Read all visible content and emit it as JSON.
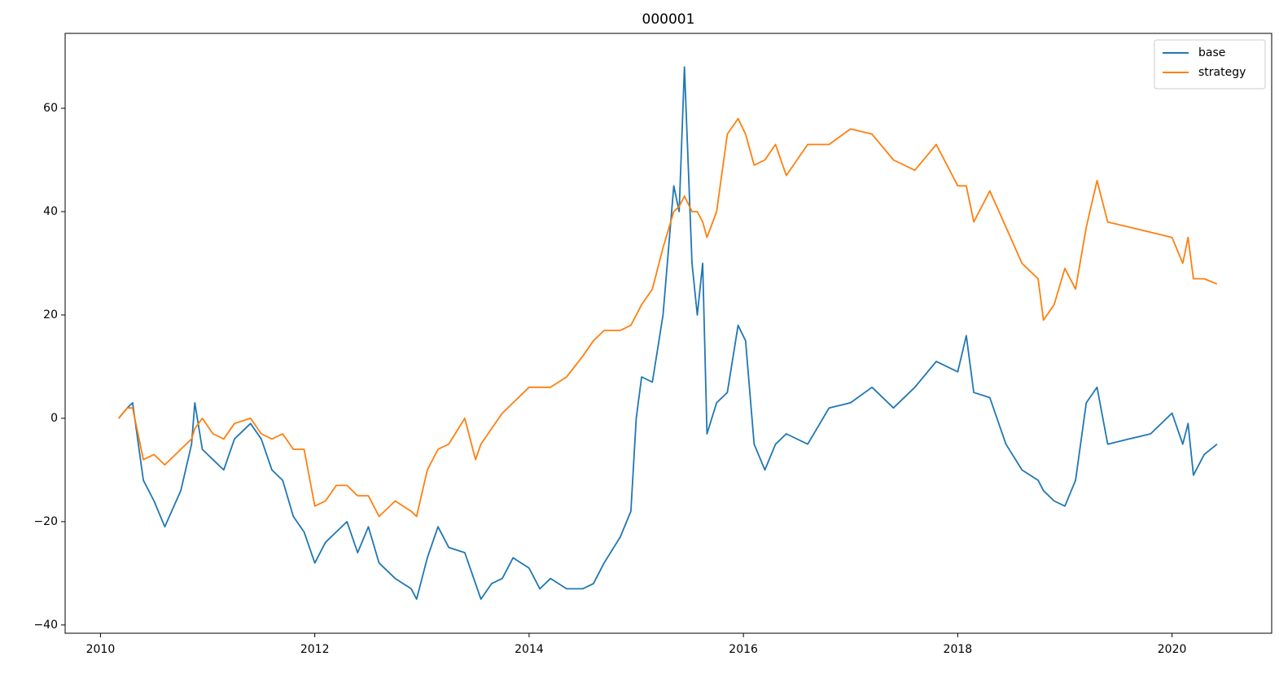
{
  "chart_data": {
    "type": "line",
    "title": "000001",
    "x": [
      2010.17,
      2010.25,
      2010.3,
      2010.4,
      2010.5,
      2010.6,
      2010.75,
      2010.85,
      2010.88,
      2010.95,
      2011.05,
      2011.15,
      2011.25,
      2011.4,
      2011.5,
      2011.6,
      2011.7,
      2011.8,
      2011.9,
      2012.0,
      2012.1,
      2012.2,
      2012.3,
      2012.4,
      2012.5,
      2012.6,
      2012.75,
      2012.9,
      2012.95,
      2013.05,
      2013.15,
      2013.25,
      2013.4,
      2013.5,
      2013.55,
      2013.65,
      2013.75,
      2013.85,
      2014.0,
      2014.1,
      2014.2,
      2014.35,
      2014.5,
      2014.6,
      2014.7,
      2014.85,
      2014.95,
      2015.0,
      2015.05,
      2015.15,
      2015.25,
      2015.35,
      2015.4,
      2015.45,
      2015.52,
      2015.57,
      2015.62,
      2015.66,
      2015.75,
      2015.85,
      2015.95,
      2016.02,
      2016.1,
      2016.2,
      2016.3,
      2016.4,
      2016.6,
      2016.8,
      2017.0,
      2017.2,
      2017.4,
      2017.6,
      2017.8,
      2018.0,
      2018.08,
      2018.15,
      2018.3,
      2018.45,
      2018.6,
      2018.75,
      2018.8,
      2018.9,
      2019.0,
      2019.1,
      2019.2,
      2019.3,
      2019.4,
      2019.6,
      2019.8,
      2020.0,
      2020.1,
      2020.15,
      2020.2,
      2020.3,
      2020.42
    ],
    "series": [
      {
        "name": "base",
        "color": "#1f77b4",
        "values": [
          0,
          2,
          3,
          -12,
          -16,
          -21,
          -14,
          -5,
          3,
          -6,
          -8,
          -10,
          -4,
          -1,
          -4,
          -10,
          -12,
          -19,
          -22,
          -28,
          -24,
          -22,
          -20,
          -26,
          -21,
          -28,
          -31,
          -33,
          -35,
          -27,
          -21,
          -25,
          -26,
          -32,
          -35,
          -32,
          -31,
          -27,
          -29,
          -33,
          -31,
          -33,
          -33,
          -32,
          -28,
          -23,
          -18,
          0,
          8,
          7,
          20,
          45,
          40,
          68,
          30,
          20,
          30,
          -3,
          3,
          5,
          18,
          15,
          -5,
          -10,
          -5,
          -3,
          -5,
          2,
          3,
          6,
          2,
          6,
          11,
          9,
          16,
          5,
          4,
          -5,
          -10,
          -12,
          -14,
          -16,
          -17,
          -12,
          3,
          6,
          -5,
          -4,
          -3,
          1,
          -5,
          -1,
          -11,
          -7,
          -5
        ]
      },
      {
        "name": "strategy",
        "color": "#ff7f0e",
        "values": [
          0,
          2,
          2,
          -8,
          -7,
          -9,
          -6,
          -4,
          -2,
          0,
          -3,
          -4,
          -1,
          0,
          -3,
          -4,
          -3,
          -6,
          -6,
          -17,
          -16,
          -13,
          -13,
          -15,
          -15,
          -19,
          -16,
          -18,
          -19,
          -10,
          -6,
          -5,
          0,
          -8,
          -5,
          -2,
          1,
          3,
          6,
          6,
          6,
          8,
          12,
          15,
          17,
          17,
          18,
          20,
          22,
          25,
          33,
          40,
          41,
          43,
          40,
          40,
          38,
          35,
          40,
          55,
          58,
          55,
          49,
          50,
          53,
          47,
          53,
          53,
          56,
          55,
          50,
          48,
          53,
          45,
          45,
          38,
          44,
          37,
          30,
          27,
          19,
          22,
          29,
          25,
          37,
          46,
          38,
          37,
          36,
          35,
          30,
          35,
          27,
          27,
          26
        ]
      }
    ],
    "xlim": [
      2009.67,
      2020.93
    ],
    "xticks": [
      2010,
      2012,
      2014,
      2016,
      2018,
      2020
    ],
    "ylim": [
      -41.6,
      74.5
    ],
    "yticks": [
      {
        "value": -40,
        "label": "−40"
      },
      {
        "value": -20,
        "label": "−20"
      },
      0,
      20,
      40,
      60
    ],
    "legend": "upper right"
  }
}
